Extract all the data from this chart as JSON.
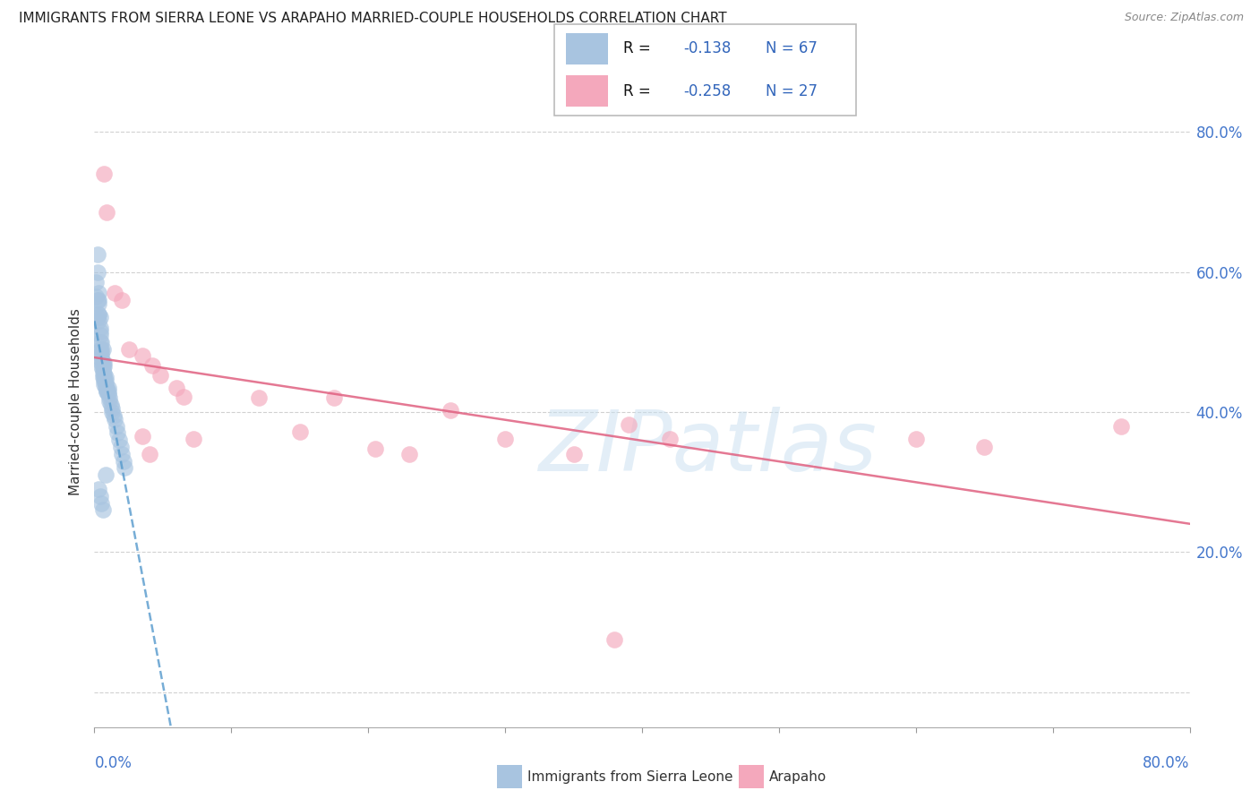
{
  "title": "IMMIGRANTS FROM SIERRA LEONE VS ARAPAHO MARRIED-COUPLE HOUSEHOLDS CORRELATION CHART",
  "source": "Source: ZipAtlas.com",
  "ylabel": "Married-couple Households",
  "xlim": [
    0.0,
    0.8
  ],
  "ylim": [
    -0.05,
    0.88
  ],
  "yticks": [
    0.0,
    0.2,
    0.4,
    0.6,
    0.8
  ],
  "ytick_labels": [
    "",
    "20.0%",
    "40.0%",
    "60.0%",
    "80.0%"
  ],
  "xtick_vals": [
    0.0,
    0.1,
    0.2,
    0.3,
    0.4,
    0.5,
    0.6,
    0.7,
    0.8
  ],
  "grid_color": "#cccccc",
  "watermark": "ZIPatlas",
  "bg_color": "#ffffff",
  "sierra_leone_color": "#a8c4e0",
  "arapaho_color": "#f4a8bc",
  "sierra_leone_line_color": "#5599cc",
  "arapaho_line_color": "#e06080",
  "legend_R_color": "#000000",
  "legend_val_color": "#3366bb",
  "legend_N_color": "#3366bb",
  "legend_border": "#bbbbbb",
  "sl_x": [
    0.001,
    0.001,
    0.002,
    0.002,
    0.002,
    0.002,
    0.003,
    0.003,
    0.003,
    0.003,
    0.003,
    0.004,
    0.004,
    0.004,
    0.004,
    0.004,
    0.005,
    0.005,
    0.005,
    0.005,
    0.005,
    0.005,
    0.006,
    0.006,
    0.006,
    0.006,
    0.006,
    0.007,
    0.007,
    0.007,
    0.007,
    0.007,
    0.008,
    0.008,
    0.008,
    0.008,
    0.009,
    0.009,
    0.009,
    0.01,
    0.01,
    0.01,
    0.011,
    0.011,
    0.012,
    0.013,
    0.013,
    0.014,
    0.015,
    0.016,
    0.017,
    0.018,
    0.019,
    0.02,
    0.021,
    0.022,
    0.003,
    0.004,
    0.005,
    0.006,
    0.007,
    0.003,
    0.004,
    0.005,
    0.006,
    0.008
  ],
  "sl_y": [
    0.585,
    0.565,
    0.625,
    0.6,
    0.56,
    0.535,
    0.57,
    0.56,
    0.555,
    0.54,
    0.53,
    0.535,
    0.52,
    0.51,
    0.5,
    0.49,
    0.49,
    0.485,
    0.48,
    0.475,
    0.47,
    0.465,
    0.47,
    0.465,
    0.46,
    0.455,
    0.45,
    0.465,
    0.455,
    0.45,
    0.445,
    0.44,
    0.45,
    0.445,
    0.44,
    0.435,
    0.435,
    0.43,
    0.43,
    0.435,
    0.43,
    0.425,
    0.42,
    0.415,
    0.41,
    0.405,
    0.4,
    0.395,
    0.39,
    0.38,
    0.37,
    0.36,
    0.35,
    0.34,
    0.33,
    0.32,
    0.54,
    0.515,
    0.5,
    0.49,
    0.47,
    0.29,
    0.28,
    0.27,
    0.26,
    0.31
  ],
  "ar_x": [
    0.007,
    0.009,
    0.015,
    0.02,
    0.025,
    0.035,
    0.042,
    0.048,
    0.06,
    0.065,
    0.072,
    0.12,
    0.15,
    0.175,
    0.205,
    0.23,
    0.26,
    0.3,
    0.35,
    0.39,
    0.42,
    0.6,
    0.65,
    0.75,
    0.035,
    0.04,
    0.38
  ],
  "ar_y": [
    0.74,
    0.685,
    0.57,
    0.56,
    0.49,
    0.48,
    0.467,
    0.453,
    0.435,
    0.422,
    0.362,
    0.42,
    0.372,
    0.42,
    0.348,
    0.34,
    0.402,
    0.362,
    0.34,
    0.382,
    0.362,
    0.362,
    0.35,
    0.38,
    0.365,
    0.34,
    0.075
  ]
}
